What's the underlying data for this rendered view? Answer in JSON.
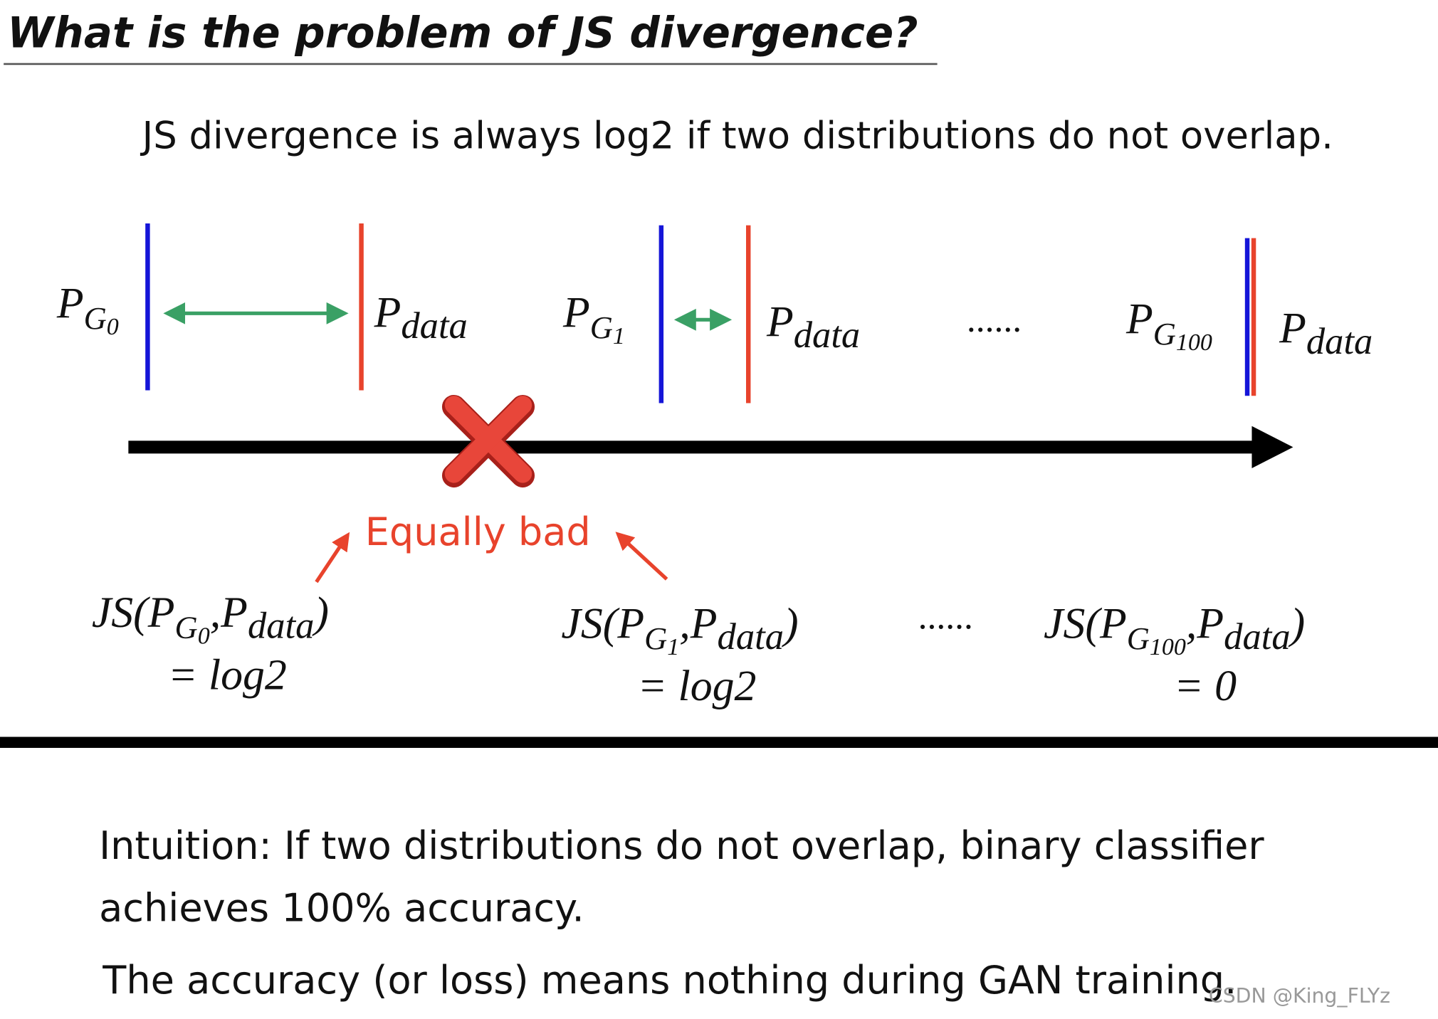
{
  "header": {
    "title": "What is the problem of JS divergence?",
    "subtitle": "JS divergence is always log2 if two distributions do not overlap."
  },
  "diagram": {
    "pairs": [
      {
        "generator": {
          "symbol": "P",
          "subscript": "G",
          "index": "0"
        },
        "data": {
          "symbol": "P",
          "subscript": "data"
        }
      },
      {
        "generator": {
          "symbol": "P",
          "subscript": "G",
          "index": "1"
        },
        "data": {
          "symbol": "P",
          "subscript": "data"
        }
      },
      {
        "generator": {
          "symbol": "P",
          "subscript": "G",
          "index": "100"
        },
        "data": {
          "symbol": "P",
          "subscript": "data"
        }
      }
    ],
    "ellipsis": "......",
    "verdict": "Equally bad",
    "formulas": [
      {
        "open": "JS(",
        "separator": ",",
        "close": ")",
        "result": "= log2"
      },
      {
        "open": "JS(",
        "separator": ",",
        "close": ")",
        "result": "= log2"
      },
      {
        "open": "JS(",
        "separator": ",",
        "close": ")",
        "result": "= 0"
      }
    ]
  },
  "body": {
    "intuition": [
      "Intuition: If two distributions do not overlap, binary classifier",
      "achieves 100% accuracy."
    ],
    "conclusion": "The accuracy (or loss) means nothing during GAN training."
  },
  "watermark": "CSDN @King_FLYz"
}
